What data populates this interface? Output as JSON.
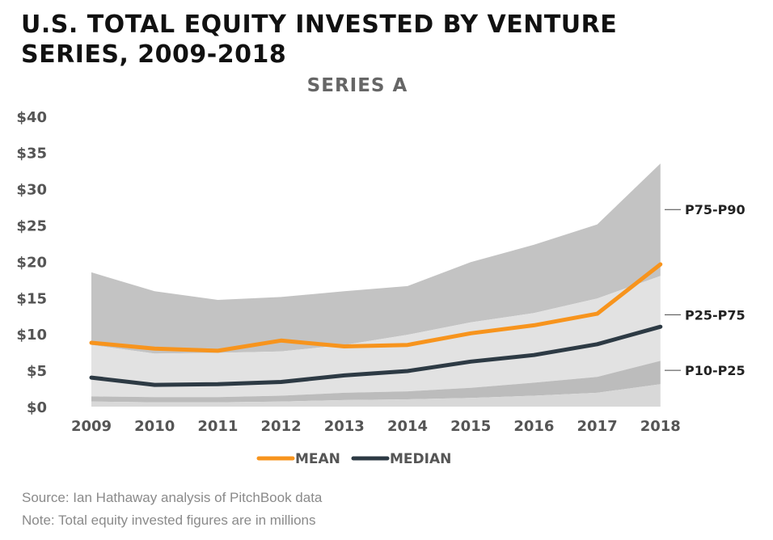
{
  "header": {
    "title_line1": "U.S. TOTAL EQUITY INVESTED BY VENTURE",
    "title_line2": "SERIES, 2009-2018"
  },
  "footer": {
    "source": "Source: Ian Hathaway analysis of PitchBook data",
    "note": "Note: Total equity invested figures are in millions"
  },
  "colors": {
    "mean": "#f7941d",
    "median": "#2d3a44",
    "band_p75_p90": "#c3c3c3",
    "band_p25_p75": "#e2e2e2",
    "band_p10_p25": "#bcbcbc",
    "band_below_p10": "#d8d8d8",
    "axis_text": "#555555",
    "subtitle": "#666666"
  },
  "chart_data": {
    "type": "area",
    "title": "SERIES A",
    "x": [
      "2009",
      "2010",
      "2011",
      "2012",
      "2013",
      "2014",
      "2015",
      "2016",
      "2017",
      "2018"
    ],
    "ylim": [
      0,
      40
    ],
    "yticks": [
      0,
      5,
      10,
      15,
      20,
      25,
      30,
      35,
      40
    ],
    "ytick_labels": [
      "$0",
      "$5",
      "$10",
      "$15",
      "$20",
      "$25",
      "$30",
      "$35",
      "$40"
    ],
    "series": [
      {
        "name": "MEAN",
        "kind": "line",
        "values": [
          8.8,
          8.0,
          7.7,
          9.1,
          8.3,
          8.5,
          10.1,
          11.2,
          12.8,
          19.6
        ]
      },
      {
        "name": "MEDIAN",
        "kind": "line",
        "values": [
          4.0,
          3.0,
          3.1,
          3.4,
          4.3,
          4.9,
          6.2,
          7.1,
          8.6,
          11.0
        ]
      }
    ],
    "percentiles": {
      "p10": [
        0.7,
        0.6,
        0.6,
        0.7,
        0.9,
        1.0,
        1.2,
        1.5,
        1.9,
        3.1
      ],
      "p25": [
        1.4,
        1.3,
        1.3,
        1.5,
        1.9,
        2.1,
        2.6,
        3.3,
        4.1,
        6.3
      ],
      "p75": [
        8.5,
        7.3,
        7.4,
        7.6,
        8.5,
        9.9,
        11.6,
        12.9,
        14.9,
        18.0
      ],
      "p90": [
        18.5,
        15.9,
        14.7,
        15.1,
        15.9,
        16.6,
        19.9,
        22.3,
        25.1,
        33.5
      ]
    },
    "band_labels": [
      "P75-P90",
      "P25-P75",
      "P10-P25"
    ],
    "legend": [
      "MEAN",
      "MEDIAN"
    ],
    "legend_position": "bottom",
    "grid": false
  }
}
